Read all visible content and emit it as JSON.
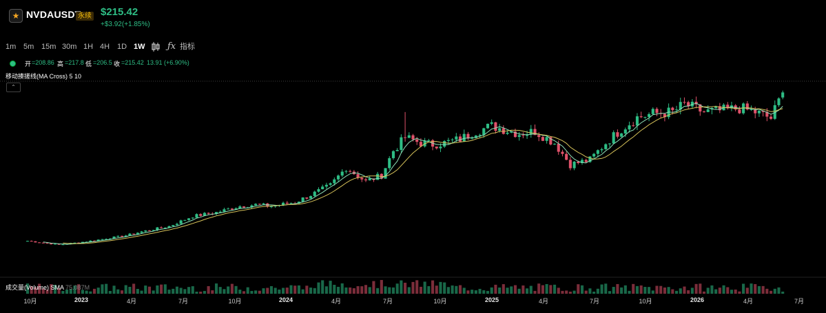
{
  "header": {
    "favorite_icon": "star-icon",
    "symbol": "NVDAUSDT",
    "badge": "永续",
    "price": "$215.42",
    "change": "+$3.92(+1.85%)"
  },
  "toolbar": {
    "timeframes": [
      "1m",
      "5m",
      "15m",
      "30m",
      "1H",
      "4H",
      "1D",
      "1W"
    ],
    "active_timeframe": "1W",
    "chart_type_icon": "candlestick-icon",
    "indicator_icon": "function-icon",
    "indicator_label": "指标"
  },
  "ohlc": {
    "open_label": "开",
    "open_value": "=208.86",
    "high_label": "高",
    "high_value": "=217.8",
    "low_label": "低",
    "low_value": "=206.5",
    "close_label": "收",
    "close_value": "=215.42",
    "change_value": "13.91 (+6.90%)"
  },
  "indicator": {
    "ma_label": "移动揍搓线(MA Cross) 5 10",
    "collapse_icon": "chevron-up-icon"
  },
  "volume": {
    "label": "成交量(Volume) SMA",
    "value": "75.087M"
  },
  "x_axis": {
    "ticks": [
      "10月",
      "2023",
      "4月",
      "7月",
      "10月",
      "2024",
      "4月",
      "7月",
      "10月",
      "2025",
      "4月",
      "7月",
      "10月",
      "2026",
      "4月",
      "7月"
    ]
  },
  "colors": {
    "up": "#2ebd85",
    "down": "#e0526a",
    "ma_fast": "#8fe0b8",
    "ma_slow": "#d7c35a"
  },
  "chart_data": {
    "type": "candlestick",
    "interval": "1W",
    "anchors": [
      [
        "2022-08-15",
        23
      ],
      [
        "2022-10-10",
        18
      ],
      [
        "2022-12-05",
        23
      ],
      [
        "2023-02-06",
        30
      ],
      [
        "2023-03-06",
        35
      ],
      [
        "2023-04-24",
        42
      ],
      [
        "2023-06-05",
        55
      ],
      [
        "2023-07-17",
        60
      ],
      [
        "2023-08-28",
        68
      ],
      [
        "2023-09-25",
        70
      ],
      [
        "2023-10-23",
        68
      ],
      [
        "2023-12-04",
        73
      ],
      [
        "2024-01-08",
        85
      ],
      [
        "2024-02-05",
        95
      ],
      [
        "2024-03-04",
        118
      ],
      [
        "2024-04-08",
        100
      ],
      [
        "2024-05-06",
        108
      ],
      [
        "2024-05-27",
        140
      ],
      [
        "2024-06-17",
        157
      ],
      [
        "2024-07-15",
        150
      ],
      [
        "2024-08-05",
        148
      ],
      [
        "2024-08-26",
        150
      ],
      [
        "2024-09-23",
        155
      ],
      [
        "2024-10-21",
        165
      ],
      [
        "2024-11-18",
        172
      ],
      [
        "2025-01-06",
        162
      ],
      [
        "2025-02-03",
        165
      ],
      [
        "2025-03-10",
        150
      ],
      [
        "2025-04-07",
        122
      ],
      [
        "2025-05-12",
        128
      ],
      [
        "2025-06-09",
        150
      ],
      [
        "2025-07-07",
        168
      ],
      [
        "2025-08-04",
        183
      ],
      [
        "2025-09-01",
        188
      ],
      [
        "2025-10-06",
        190
      ],
      [
        "2025-10-27",
        200
      ],
      [
        "2025-12-01",
        190
      ],
      [
        "2026-01-05",
        192
      ],
      [
        "2026-02-02",
        195
      ],
      [
        "2026-03-02",
        190
      ],
      [
        "2026-03-30",
        182
      ],
      [
        "2026-04-20",
        215
      ]
    ],
    "last_candle": {
      "open": 208.86,
      "high": 217.8,
      "low": 206.5,
      "close": 215.42
    },
    "moving_averages": [
      5,
      10
    ],
    "x_range": [
      "2022-06-27",
      "2026-07-06"
    ],
    "y_range": [
      0,
      230
    ],
    "grid": false
  }
}
